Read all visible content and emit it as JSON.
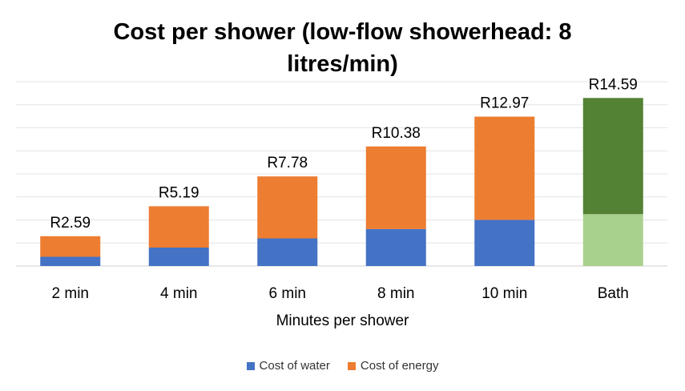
{
  "chart_data": {
    "type": "bar",
    "stacked": true,
    "title": "Cost per shower (low-flow showerhead: 8 litres/min)",
    "xlabel": "Minutes per shower",
    "ylabel": "",
    "categories": [
      "2 min",
      "4 min",
      "6 min",
      "8 min",
      "10 min",
      "Bath"
    ],
    "series": [
      {
        "name": "Cost of water",
        "color": "#4472c4",
        "values": [
          0.8,
          1.6,
          2.4,
          3.21,
          4.01,
          4.5
        ]
      },
      {
        "name": "Cost of energy",
        "color": "#ed7d31",
        "values": [
          1.79,
          3.59,
          5.38,
          7.17,
          8.96,
          10.09
        ]
      }
    ],
    "bath_colors": {
      "water": "#a9d18e",
      "energy": "#548235"
    },
    "totals": [
      "R2.59",
      "R5.19",
      "R7.78",
      "R10.38",
      "R12.97",
      "R14.59"
    ],
    "totals_values": [
      2.59,
      5.19,
      7.78,
      10.38,
      12.97,
      14.59
    ],
    "ylim": [
      0,
      16
    ],
    "grid": true,
    "legend_position": "bottom"
  }
}
